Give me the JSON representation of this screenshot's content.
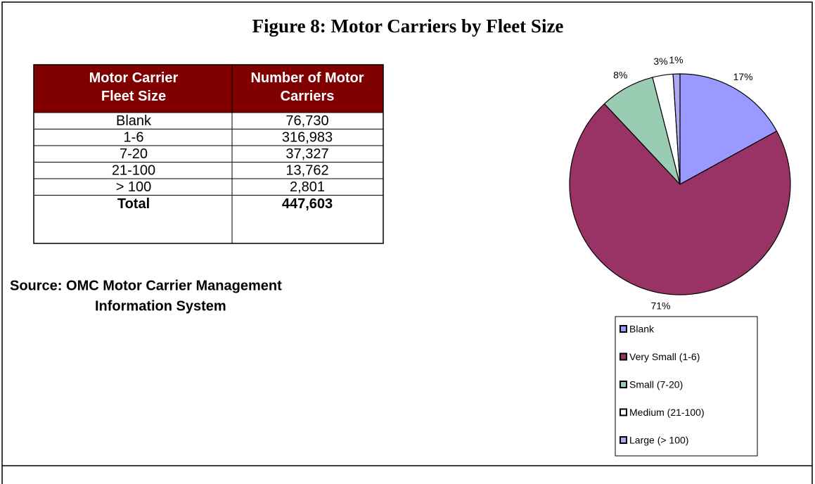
{
  "title": "Figure 8:  Motor Carriers by Fleet Size",
  "table": {
    "header": [
      "Motor Carrier Fleet Size",
      "Number of Motor Carriers"
    ],
    "rows": [
      [
        "Blank",
        "76,730"
      ],
      [
        "1-6",
        "316,983"
      ],
      [
        "7-20",
        "37,327"
      ],
      [
        "21-100",
        "13,762"
      ],
      [
        "> 100",
        "2,801"
      ]
    ],
    "total": [
      "Total",
      "447,603"
    ]
  },
  "source": [
    "Source:  OMC Motor Carrier Management",
    "Information System"
  ],
  "chart_data": {
    "type": "pie",
    "categories": [
      "Blank",
      "Very Small (1-6)",
      "Small (7-20)",
      "Medium (21-100)",
      "Large (> 100)"
    ],
    "values": [
      17,
      71,
      8,
      3,
      1
    ],
    "value_labels": [
      "17%",
      "71%",
      "8%",
      "3%",
      "1%"
    ],
    "colors": [
      "#9999ff",
      "#993366",
      "#99ccb3",
      "#ffffff",
      "#b0a8f4"
    ]
  }
}
